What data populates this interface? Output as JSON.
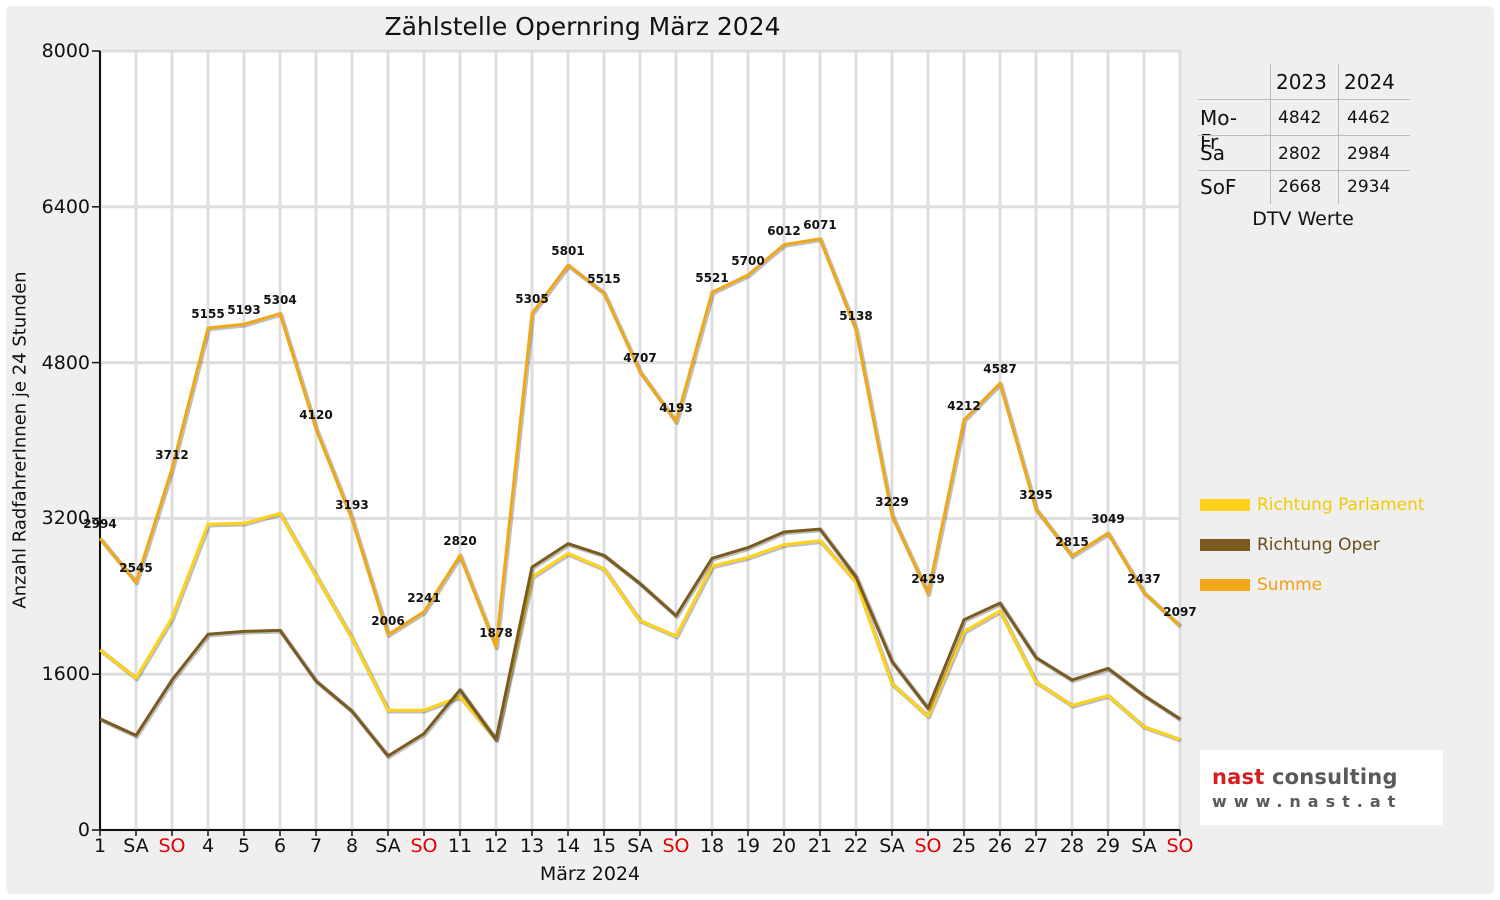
{
  "chart_data": {
    "type": "line",
    "title": "Zählstelle Opernring März 2024",
    "xlabel": "März 2024",
    "ylabel": "Anzahl RadfahrerInnen je 24 Stunden",
    "ylim": [
      0,
      8000
    ],
    "yticks": [
      "0",
      "1600",
      "3200",
      "4800",
      "6400",
      "8000"
    ],
    "grid": true,
    "legend_position": "right",
    "categories": [
      "1",
      "SA",
      "SO",
      "4",
      "5",
      "6",
      "7",
      "8",
      "SA",
      "SO",
      "11",
      "12",
      "13",
      "14",
      "15",
      "SA",
      "SO",
      "18",
      "19",
      "20",
      "21",
      "22",
      "SA",
      "SO",
      "25",
      "26",
      "27",
      "28",
      "29",
      "SA",
      "SO"
    ],
    "weekend_days": [
      "SA",
      "SO"
    ],
    "series": [
      {
        "name": "Richtung Parlament",
        "color": "#ffd21a",
        "values": [
          1850,
          1560,
          2180,
          3140,
          3150,
          3250,
          2610,
          1970,
          1230,
          1230,
          1370,
          930,
          2600,
          2840,
          2680,
          2150,
          1990,
          2710,
          2800,
          2930,
          2970,
          2550,
          1500,
          1170,
          2040,
          2250,
          1520,
          1280,
          1380,
          1060,
          930
        ]
      },
      {
        "name": "Richtung Oper",
        "color": "#7a5a1e",
        "values": [
          1140,
          970,
          1540,
          2010,
          2040,
          2050,
          1530,
          1220,
          760,
          990,
          1440,
          930,
          2700,
          2940,
          2820,
          2530,
          2200,
          2790,
          2900,
          3060,
          3090,
          2600,
          1730,
          1250,
          2160,
          2330,
          1770,
          1540,
          1660,
          1380,
          1140
        ]
      },
      {
        "name": "Summe",
        "color": "#f0a818",
        "values": [
          2994,
          2545,
          3712,
          5155,
          5193,
          5304,
          4120,
          3193,
          2006,
          2241,
          2820,
          1878,
          5305,
          5801,
          5515,
          4707,
          4193,
          5521,
          5700,
          6012,
          6071,
          5138,
          3229,
          2429,
          4212,
          4587,
          3295,
          2815,
          3049,
          2437,
          2097
        ]
      }
    ],
    "data_labels": [
      "2994",
      "2545",
      "3712",
      "5155",
      "5193",
      "5304",
      "4120",
      "3193",
      "2006",
      "2241",
      "2820",
      "1878",
      "5305",
      "5801",
      "5515",
      "4707",
      "4193",
      "5521",
      "5700",
      "6012",
      "6071",
      "5138",
      "3229",
      "2429",
      "4212",
      "4587",
      "3295",
      "2815",
      "3049",
      "2437",
      "2097"
    ]
  },
  "dtv_table": {
    "caption": "DTV Werte",
    "headers": [
      "",
      "2023",
      "2024"
    ],
    "rows": [
      {
        "label": "Mo-Fr",
        "v2023": "4842",
        "v2024": "4462"
      },
      {
        "label": "Sa",
        "v2023": "2802",
        "v2024": "2984"
      },
      {
        "label": "SoF",
        "v2023": "2668",
        "v2024": "2934"
      }
    ]
  },
  "legend": [
    {
      "label": "Richtung Parlament",
      "color": "#ffd21a",
      "text_color": "#f5c800"
    },
    {
      "label": "Richtung Oper",
      "color": "#7a5a1e",
      "text_color": "#6b4d17"
    },
    {
      "label": "Summe",
      "color": "#f0a818",
      "text_color": "#f0a010"
    }
  ],
  "logo": {
    "name_part1": "nast",
    "name_part2": "consulting",
    "url": "www.nast.at"
  },
  "colors": {
    "background": "#efefef",
    "plot_background": "#ffffff",
    "grid": "#dddddd",
    "weekend_label": "#e60000"
  }
}
